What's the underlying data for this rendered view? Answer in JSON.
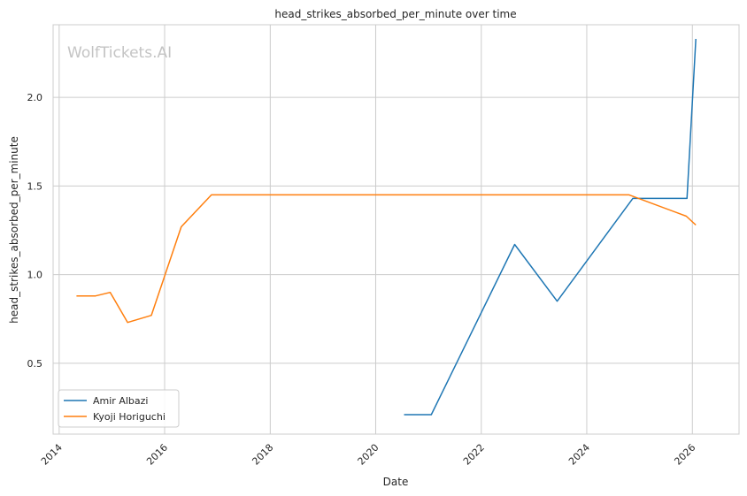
{
  "chart_data": {
    "type": "line",
    "title": "head_strikes_absorbed_per_minute over time",
    "xlabel": "Date",
    "ylabel": "head_strikes_absorbed_per_minute",
    "watermark": "WolfTickets.AI",
    "x_ticks": [
      "2014",
      "2016",
      "2018",
      "2020",
      "2022",
      "2024",
      "2026"
    ],
    "y_ticks": [
      "0.5",
      "1.0",
      "1.5",
      "2.0"
    ],
    "xlim": [
      "2013-11-20",
      "2026-11-20"
    ],
    "ylim": [
      0.1,
      2.41
    ],
    "grid": true,
    "legend_position": "lower-left",
    "series": [
      {
        "name": "Amir Albazi",
        "color": "#1f77b4",
        "points": [
          [
            "2020-07-15",
            0.21
          ],
          [
            "2021-01-20",
            0.21
          ],
          [
            "2022-08-20",
            1.17
          ],
          [
            "2023-06-10",
            0.85
          ],
          [
            "2024-11-15",
            1.43
          ],
          [
            "2025-11-25",
            1.43
          ],
          [
            "2026-01-25",
            2.33
          ]
        ]
      },
      {
        "name": "Kyoji Horiguchi",
        "color": "#ff7f0e",
        "points": [
          [
            "2014-05-01",
            0.88
          ],
          [
            "2014-09-10",
            0.88
          ],
          [
            "2014-12-20",
            0.9
          ],
          [
            "2015-04-20",
            0.73
          ],
          [
            "2015-10-01",
            0.77
          ],
          [
            "2016-04-25",
            1.27
          ],
          [
            "2016-11-20",
            1.45
          ],
          [
            "2024-10-20",
            1.45
          ],
          [
            "2025-11-20",
            1.33
          ],
          [
            "2026-01-25",
            1.28
          ]
        ]
      }
    ]
  }
}
